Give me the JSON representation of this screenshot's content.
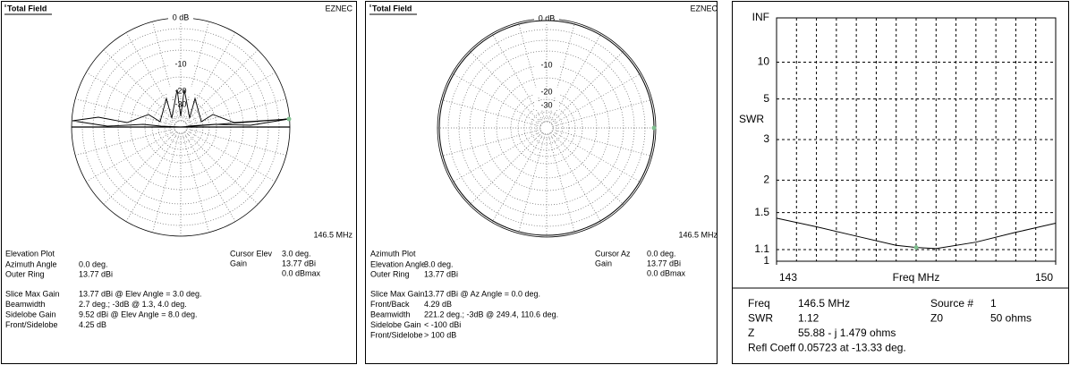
{
  "panels": [
    {
      "title": "Total Field",
      "brand": "EZNEC",
      "freq": "146.5 MHz",
      "rings": [
        "0 dB",
        "-10",
        "-20",
        "-30"
      ],
      "plot_type": "Elevation Plot",
      "rows": [
        [
          "Azimuth Angle",
          "0.0 deg."
        ],
        [
          "Outer Ring",
          "13.77 dBi"
        ]
      ],
      "cursor": [
        [
          "Cursor Elev",
          "3.0 deg."
        ],
        [
          "Gain",
          "13.77 dBi"
        ]
      ],
      "cursor_extra": "0.0 dBmax",
      "stats": [
        [
          "Slice Max Gain",
          "13.77 dBi @ Elev Angle = 3.0 deg."
        ],
        [
          "Beamwidth",
          "2.7 deg.; -3dB @ 1.3, 4.0 deg."
        ],
        [
          "Sidelobe Gain",
          "9.52 dBi @ Elev Angle = 8.0 deg."
        ],
        [
          "Front/Sidelobe",
          "4.25 dB"
        ]
      ]
    },
    {
      "title": "Total Field",
      "brand": "EZNEC",
      "freq": "146.5 MHz",
      "rings": [
        "0 dB",
        "-10",
        "-20",
        "-30"
      ],
      "plot_type": "Azimuth Plot",
      "rows": [
        [
          "Elevation Angle",
          "3.0 deg."
        ],
        [
          "Outer Ring",
          "13.77 dBi"
        ]
      ],
      "cursor": [
        [
          "Cursor Az",
          "0.0 deg."
        ],
        [
          "Gain",
          "13.77 dBi"
        ]
      ],
      "cursor_extra": "0.0 dBmax",
      "stats": [
        [
          "Slice Max Gain",
          "13.77 dBi @ Az Angle = 0.0 deg."
        ],
        [
          "Front/Back",
          "4.29 dB"
        ],
        [
          "Beamwidth",
          "221.2 deg.; -3dB @ 249.4, 110.6 deg."
        ],
        [
          "Sidelobe Gain",
          "< -100 dBi"
        ],
        [
          "Front/Sidelobe",
          "> 100 dB"
        ]
      ]
    }
  ],
  "chart_data": {
    "type": "line",
    "y_label": "SWR",
    "x_label": "Freq MHz",
    "y_scale": "reflection",
    "xlim": [
      143,
      150
    ],
    "xticks": [
      143,
      150
    ],
    "xgrid": [
      143.5,
      144,
      144.5,
      145,
      145.5,
      146,
      146.5,
      147,
      147.5,
      148,
      148.5,
      149,
      149.5
    ],
    "ylim": [
      1,
      null
    ],
    "yticks": [
      1,
      1.1,
      1.5,
      2,
      3,
      5,
      10,
      {
        "value": null,
        "label": "INF"
      }
    ],
    "series": [
      {
        "name": "SWR",
        "color": "#000000",
        "x": [
          143,
          144,
          145,
          146,
          146.5,
          147,
          148,
          149,
          150
        ],
        "values": [
          1.43,
          1.33,
          1.23,
          1.14,
          1.12,
          1.11,
          1.17,
          1.27,
          1.37
        ]
      }
    ],
    "cursor_index": 4,
    "cursor_color": "#7fbf8f"
  },
  "swr_info": [
    [
      [
        "Freq",
        "146.5 MHz"
      ],
      [
        "Source #",
        "1"
      ]
    ],
    [
      [
        "SWR",
        "1.12"
      ],
      [
        "Z0",
        "50 ohms"
      ]
    ],
    [
      [
        "Z",
        "55.88 - j 1.479 ohms"
      ]
    ],
    [
      [
        "Refl Coeff",
        "0.05723 at -13.33 deg."
      ]
    ]
  ]
}
